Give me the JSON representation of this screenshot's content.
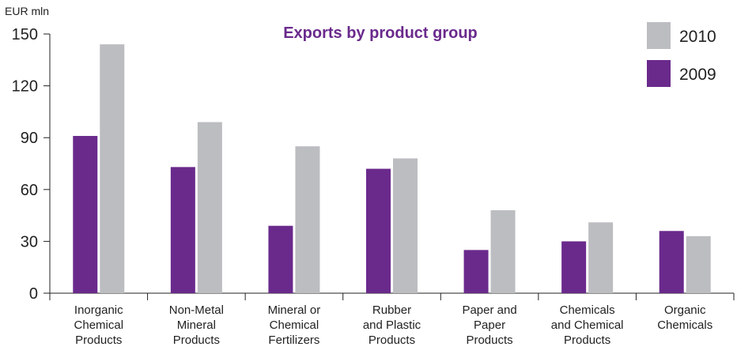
{
  "chart_data": {
    "type": "bar",
    "title": "Exports by product group",
    "ylabel": "EUR mln",
    "xlabel": "",
    "ylim": [
      0,
      150
    ],
    "yticks": [
      0,
      30,
      60,
      90,
      120,
      150
    ],
    "grid": false,
    "legend_position": "top-right",
    "categories": [
      [
        "Inorganic",
        "Chemical",
        "Products"
      ],
      [
        "Non-Metal",
        "Mineral",
        "Products"
      ],
      [
        "Mineral or",
        "Chemical",
        "Fertilizers"
      ],
      [
        "Rubber",
        "and Plastic",
        "Products"
      ],
      [
        "Paper and",
        "Paper",
        "Products"
      ],
      [
        "Chemicals",
        "and Chemical",
        "Products"
      ],
      [
        "Organic",
        "Chemicals"
      ]
    ],
    "series": [
      {
        "name": "2009",
        "color": "#6a2a8c",
        "values": [
          91,
          73,
          39,
          72,
          25,
          30,
          36
        ]
      },
      {
        "name": "2010",
        "color": "#bcbdc0",
        "values": [
          144,
          99,
          85,
          78,
          48,
          41,
          33
        ]
      }
    ],
    "legend_order": [
      "2010",
      "2009"
    ],
    "title_color": "#6a2a8c"
  }
}
